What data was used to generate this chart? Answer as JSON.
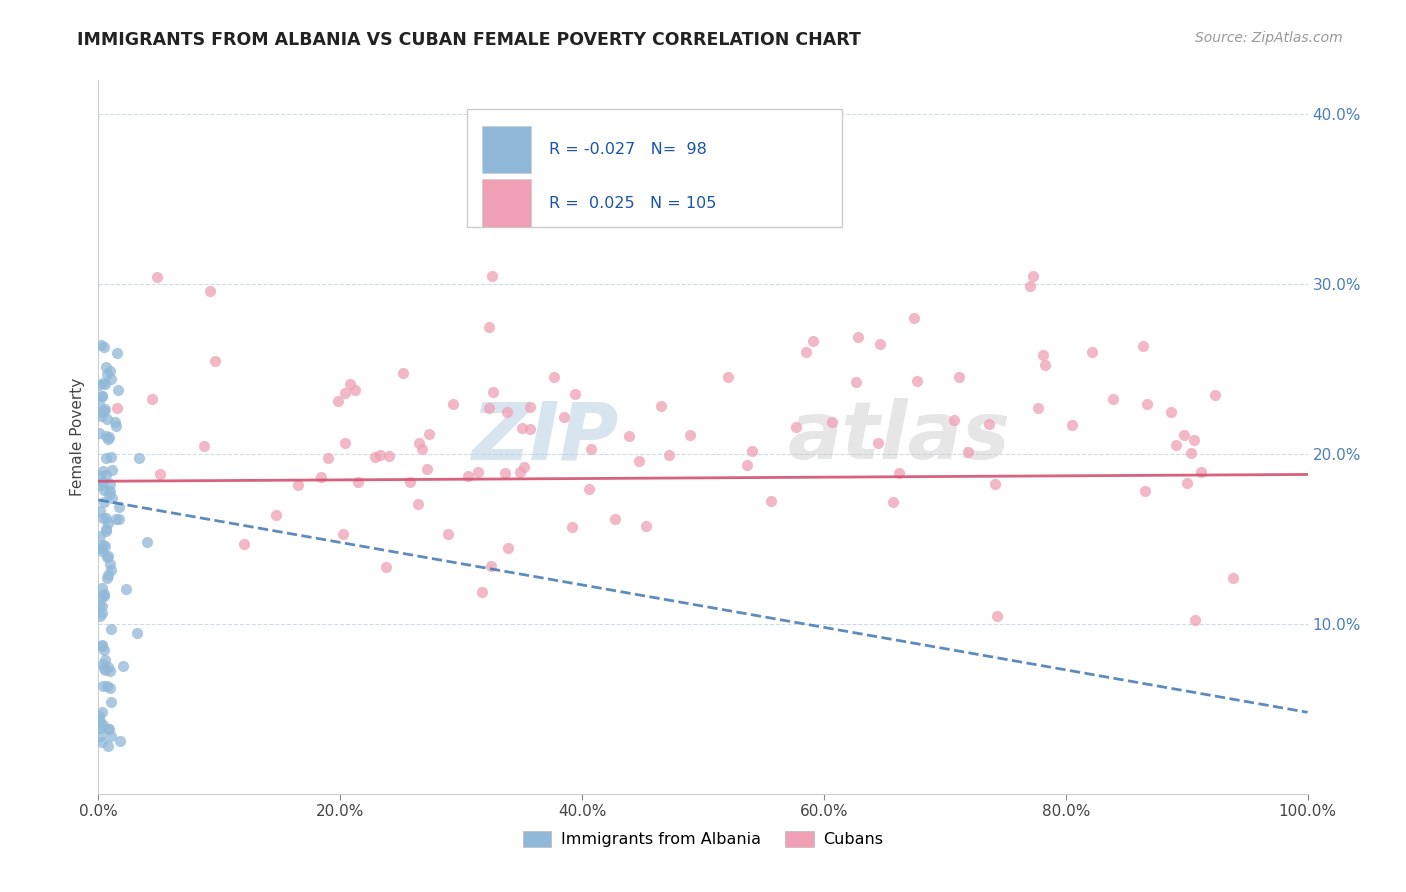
{
  "title": "IMMIGRANTS FROM ALBANIA VS CUBAN FEMALE POVERTY CORRELATION CHART",
  "source": "Source: ZipAtlas.com",
  "ylabel": "Female Poverty",
  "xlim": [
    0,
    1.0
  ],
  "ylim": [
    0,
    0.42
  ],
  "xticks": [
    0.0,
    0.2,
    0.4,
    0.6,
    0.8,
    1.0
  ],
  "yticks_right": [
    0.1,
    0.2,
    0.3,
    0.4
  ],
  "r_albania": -0.027,
  "n_albania": 98,
  "r_cuban": 0.025,
  "n_cuban": 105,
  "albania_color": "#90b8d8",
  "cuban_color": "#f0a0b5",
  "albania_line_color": "#4a7fb5",
  "cuban_line_color": "#d45070",
  "tick_color": "#4a7fb5",
  "watermark_zip": "ZIP",
  "watermark_atlas": "atlas",
  "legend_label_albania": "Immigrants from Albania",
  "legend_label_cuban": "Cubans",
  "albania_trend_x": [
    0.0,
    1.0
  ],
  "albania_trend_y": [
    0.173,
    0.048
  ],
  "cuban_trend_x": [
    0.0,
    1.0
  ],
  "cuban_trend_y": [
    0.184,
    0.188
  ]
}
